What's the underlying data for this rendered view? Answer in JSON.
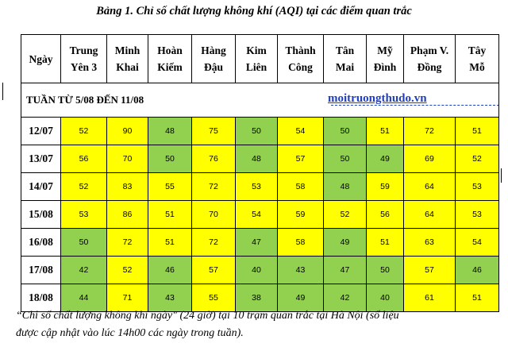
{
  "title": "Bảng 1. Chỉ số chất lượng không khí (AQI) tại các điểm quan trắc",
  "table": {
    "day_header": "Ngày",
    "stations": [
      {
        "line1": "Trung",
        "line2": "Yên 3"
      },
      {
        "line1": "Minh",
        "line2": "Khai"
      },
      {
        "line1": "Hoàn",
        "line2": "Kiếm"
      },
      {
        "line1": "Hàng",
        "line2": "Đậu"
      },
      {
        "line1": "Kim",
        "line2": "Liên"
      },
      {
        "line1": "Thành",
        "line2": "Công"
      },
      {
        "line1": "Tân",
        "line2": "Mai"
      },
      {
        "line1": "Mỹ",
        "line2": "Đình"
      },
      {
        "line1": "Phạm V.",
        "line2": "Đồng"
      },
      {
        "line1": "Tây",
        "line2": "Mỗ"
      }
    ],
    "week_label": "TUẦN TỪ 5/08 ĐẾN 11/08",
    "rows": [
      {
        "day": "12/07",
        "values": [
          "52",
          "90",
          "48",
          "75",
          "50",
          "54",
          "50",
          "51",
          "72",
          "51"
        ]
      },
      {
        "day": "13/07",
        "values": [
          "56",
          "70",
          "50",
          "76",
          "48",
          "57",
          "50",
          "49",
          "69",
          "52"
        ]
      },
      {
        "day": "14/07",
        "values": [
          "52",
          "83",
          "55",
          "72",
          "53",
          "58",
          "48",
          "59",
          "64",
          "53"
        ]
      },
      {
        "day": "15/08",
        "values": [
          "53",
          "86",
          "51",
          "70",
          "54",
          "59",
          "52",
          "56",
          "64",
          "53"
        ]
      },
      {
        "day": "16/08",
        "values": [
          "50",
          "72",
          "51",
          "72",
          "47",
          "58",
          "49",
          "51",
          "63",
          "54"
        ]
      },
      {
        "day": "17/08",
        "values": [
          "42",
          "52",
          "46",
          "57",
          "40",
          "43",
          "47",
          "50",
          "57",
          "46"
        ]
      },
      {
        "day": "18/08",
        "values": [
          "44",
          "71",
          "43",
          "55",
          "38",
          "49",
          "42",
          "40",
          "61",
          "51"
        ]
      }
    ]
  },
  "colors": {
    "good": "#92d050",
    "moderate": "#ffff00",
    "watermark": "#1f3fbf"
  },
  "watermark": "moitruongthudo.vn",
  "caption": {
    "line1": "“Chỉ số chất lượng không khí ngày\" (24 giờ) tại 10 trạm quan trắc tại Hà Nội (số liệu",
    "line2": "được cập nhật vào lúc 14h00 các ngày trong tuần)."
  }
}
